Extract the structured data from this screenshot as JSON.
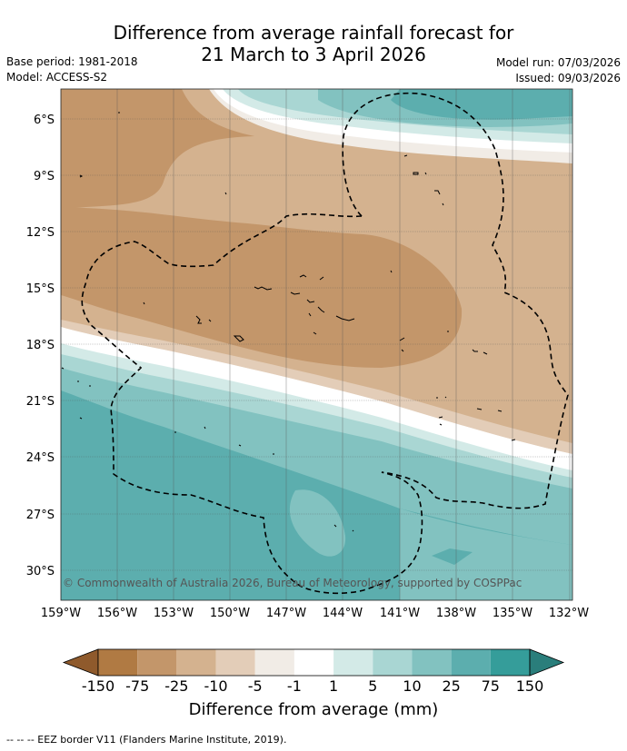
{
  "title_line1": "Difference from average rainfall forecast for",
  "title_line2": "21 March to 3 April 2026",
  "base_period": "Base period: 1981-2018",
  "model": "Model: ACCESS-S2",
  "model_run": "Model run: 07/03/2026",
  "issued": "Issued: 09/03/2026",
  "copyright": "© Commonwealth of Australia 2026, Bureau of Meteorology, supported by COSPPac",
  "lat_labels": [
    "6°S",
    "9°S",
    "12°S",
    "15°S",
    "18°S",
    "21°S",
    "24°S",
    "27°S",
    "30°S"
  ],
  "lon_labels": [
    "159°W",
    "156°W",
    "153°W",
    "150°W",
    "147°W",
    "144°W",
    "141°W",
    "138°W",
    "135°W",
    "132°W"
  ],
  "legend": {
    "title": "Difference from average (mm)",
    "labels": [
      "-150",
      "-75",
      "-25",
      "-10",
      "-5",
      "-1",
      "1",
      "5",
      "10",
      "25",
      "75",
      "150"
    ],
    "colors": [
      "#8f5a2c",
      "#b07a43",
      "#c3966a",
      "#d4b28f",
      "#e3cdb8",
      "#f1ece6",
      "#ffffff",
      "#d3eae7",
      "#a9d6d3",
      "#82c2c0",
      "#5caeae",
      "#359d9a",
      "#2a7e7b"
    ]
  },
  "footnote": "--  --  -- EEZ border V11 (Flanders Marine Institute, 2019)."
}
